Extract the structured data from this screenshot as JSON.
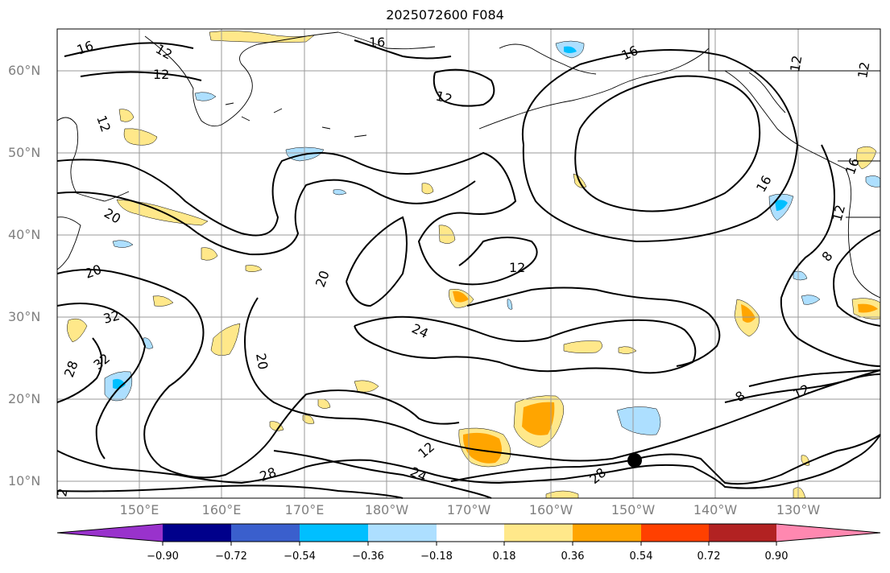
{
  "title": "2025072600 F084",
  "lat_labels": [
    "60°N",
    "50°N",
    "40°N",
    "30°N",
    "20°N",
    "10°N"
  ],
  "lon_labels": [
    "150°E",
    "160°E",
    "170°E",
    "180°W",
    "170°W",
    "160°W",
    "150°W",
    "140°W",
    "130°W"
  ],
  "contour_labels": [
    "16",
    "12",
    "12",
    "16",
    "16",
    "12",
    "12",
    "16",
    "12",
    "20",
    "20",
    "32",
    "32",
    "28",
    "20",
    "20",
    "12",
    "24",
    "28",
    "24",
    "12",
    "28",
    "8",
    "12",
    "16",
    "12",
    "8",
    "12",
    "2"
  ],
  "colorbar": {
    "ticks": [
      "−0.90",
      "−0.72",
      "−0.54",
      "−0.36",
      "−0.18",
      "0.18",
      "0.36",
      "0.54",
      "0.72",
      "0.90"
    ],
    "colors": [
      "#9932CC",
      "#00008B",
      "#3A5FCD",
      "#00BFFF",
      "#ADDFFF",
      "#FFFFFF",
      "#FFE88A",
      "#FFA500",
      "#FF4000",
      "#B22222",
      "#FF88B0"
    ]
  }
}
